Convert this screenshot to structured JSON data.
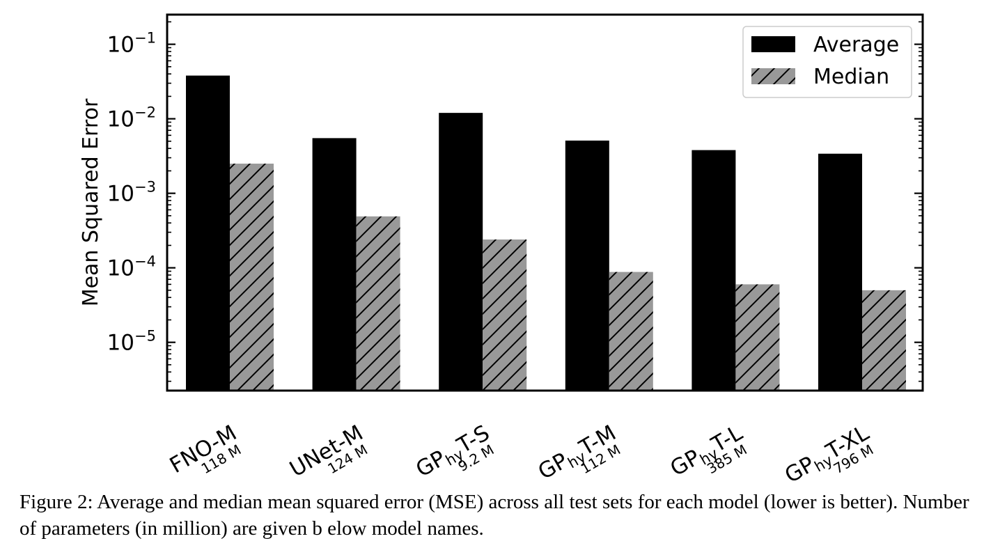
{
  "chart_data": {
    "type": "bar",
    "scale": "log",
    "ylabel": "Mean Squared Error",
    "ylim": [
      2.25e-06,
      0.25
    ],
    "y_ticks": [
      {
        "value": 1e-05,
        "base": "10",
        "exp": "−5"
      },
      {
        "value": 0.0001,
        "base": "10",
        "exp": "−4"
      },
      {
        "value": 0.001,
        "base": "10",
        "exp": "−3"
      },
      {
        "value": 0.01,
        "base": "10",
        "exp": "−2"
      },
      {
        "value": 0.1,
        "base": "10",
        "exp": "−1"
      }
    ],
    "categories": [
      {
        "name": "FNO-M",
        "params": "118 M"
      },
      {
        "name": "UNet-M",
        "params": "124 M"
      },
      {
        "name": "GPhyT-S",
        "prefix": "GP",
        "sub": "hy",
        "suffix": "T-S",
        "params": "9.2 M"
      },
      {
        "name": "GPhyT-M",
        "prefix": "GP",
        "sub": "hy",
        "suffix": "T-M",
        "params": "112 M"
      },
      {
        "name": "GPhyT-L",
        "prefix": "GP",
        "sub": "hy",
        "suffix": "T-L",
        "params": "385 M"
      },
      {
        "name": "GPhyT-XL",
        "prefix": "GP",
        "sub": "hy",
        "suffix": "T-XL",
        "params": "796 M"
      }
    ],
    "series": [
      {
        "name": "Average",
        "color": "#000000",
        "hatch": false,
        "values": [
          0.038,
          0.0055,
          0.012,
          0.0051,
          0.0038,
          0.0034
        ]
      },
      {
        "name": "Median",
        "color": "#999999",
        "hatch": true,
        "values": [
          0.0025,
          0.00049,
          0.00024,
          8.8e-05,
          6e-05,
          5e-05
        ]
      }
    ],
    "legend": "top-right",
    "grid": false
  },
  "caption": "Figure 2: Average and median mean squared error (MSE) across all test sets for each model (lower is better). Number of parameters (in million) are given b elow model names."
}
